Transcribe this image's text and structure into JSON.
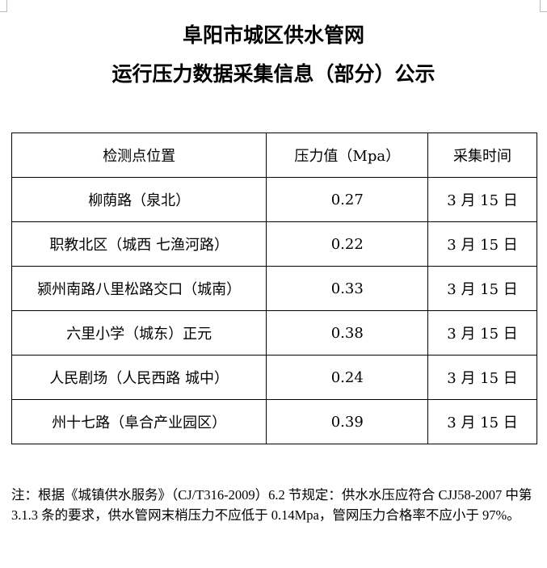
{
  "title_line1": "阜阳市城区供水管网",
  "title_line2": "运行压力数据采集信息（部分）公示",
  "table": {
    "headers": [
      "检测点位置",
      "压力值（Mpa）",
      "采集时间"
    ],
    "rows": [
      [
        "柳荫路（泉北）",
        "0.27",
        "3 月 15 日"
      ],
      [
        "职教北区（城西  七渔河路）",
        "0.22",
        "3 月 15 日"
      ],
      [
        "颍州南路八里松路交口（城南）",
        "0.33",
        "3 月 15 日"
      ],
      [
        "六里小学（城东）正元",
        "0.38",
        "3 月 15 日"
      ],
      [
        "人民剧场（人民西路  城中）",
        "0.24",
        "3 月 15 日"
      ],
      [
        "州十七路（阜合产业园区）",
        "0.39",
        "3 月 15 日"
      ]
    ]
  },
  "note": "注：根据《城镇供水服务》（CJ/T316-2009）6.2 节规定：供水水压应符合 CJJ58-2007 中第 3.1.3 条的要求，供水管网末梢压力不应低于 0.14Mpa，管网压力合格率不应小于 97%。"
}
